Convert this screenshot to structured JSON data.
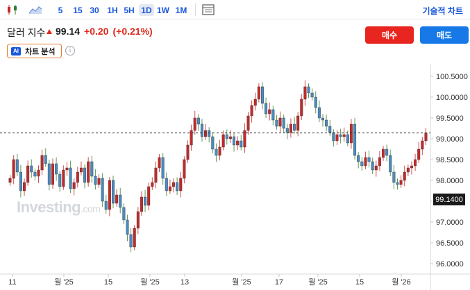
{
  "toolbar": {
    "timeframes": [
      "5",
      "15",
      "30",
      "1H",
      "5H",
      "1D",
      "1W",
      "1M"
    ],
    "active_timeframe": "1D",
    "tech_chart_link": "기술적 차트"
  },
  "instrument": {
    "name": "달러 지수",
    "price": "99.14",
    "change": "+0.20",
    "change_pct": "(+0.21%)",
    "direction": "up"
  },
  "actions": {
    "buy_label": "매수",
    "sell_label": "매도",
    "ai_badge": "AI",
    "ai_label": "차트 분석"
  },
  "watermark": {
    "main": "Investing",
    "suffix": ".com"
  },
  "colors": {
    "up": "#c62828",
    "down": "#4a8bc0",
    "buy": "#e8251f",
    "sell": "#1779e8",
    "accent": "#1a56db"
  },
  "chart_data": {
    "type": "candlestick",
    "x_tick_labels": [
      "11",
      "월 '25",
      "15",
      "월 '25",
      "13",
      "월 '25",
      "17",
      "월 '25",
      "15",
      "월 '26"
    ],
    "y_tick_labels": [
      "100.5000",
      "100.0000",
      "99.5000",
      "99.0000",
      "98.5000",
      "98.0000",
      "97.5000",
      "97.0000",
      "96.5000",
      "96.0000"
    ],
    "ylim": [
      95.8,
      100.7
    ],
    "last_price_label": "99.1400",
    "last_price": 99.14,
    "closes": [
      98.05,
      98.5,
      98.2,
      97.75,
      97.95,
      98.35,
      98.2,
      98.1,
      98.25,
      98.6,
      98.4,
      97.9,
      98.4,
      98.15,
      97.85,
      98.25,
      98.3,
      97.8,
      97.95,
      98.2,
      98.3,
      97.95,
      98.45,
      98.1,
      97.9,
      98.05,
      97.5,
      97.3,
      98.0,
      97.45,
      97.65,
      97.35,
      97.05,
      96.7,
      96.4,
      96.85,
      97.25,
      97.6,
      97.4,
      97.85,
      97.95,
      98.3,
      98.55,
      98.05,
      97.75,
      97.85,
      97.95,
      97.75,
      98.05,
      98.5,
      98.85,
      99.2,
      99.5,
      99.35,
      99.05,
      99.2,
      99.05,
      98.75,
      98.6,
      98.8,
      99.1,
      99.0,
      99.05,
      98.85,
      98.95,
      98.8,
      99.2,
      99.55,
      99.8,
      99.95,
      100.25,
      99.85,
      99.6,
      99.7,
      99.45,
      99.3,
      99.5,
      99.25,
      99.15,
      99.35,
      99.2,
      99.55,
      99.95,
      100.25,
      100.1,
      100.0,
      99.75,
      99.5,
      99.45,
      99.3,
      99.15,
      98.95,
      99.1,
      99.05,
      99.1,
      98.9,
      99.35,
      98.6,
      98.45,
      98.35,
      98.55,
      98.45,
      98.25,
      98.35,
      98.55,
      98.75,
      98.6,
      98.2,
      97.95,
      97.9,
      98.0,
      98.2,
      98.3,
      98.35,
      98.5,
      98.75,
      98.95,
      99.14
    ]
  }
}
